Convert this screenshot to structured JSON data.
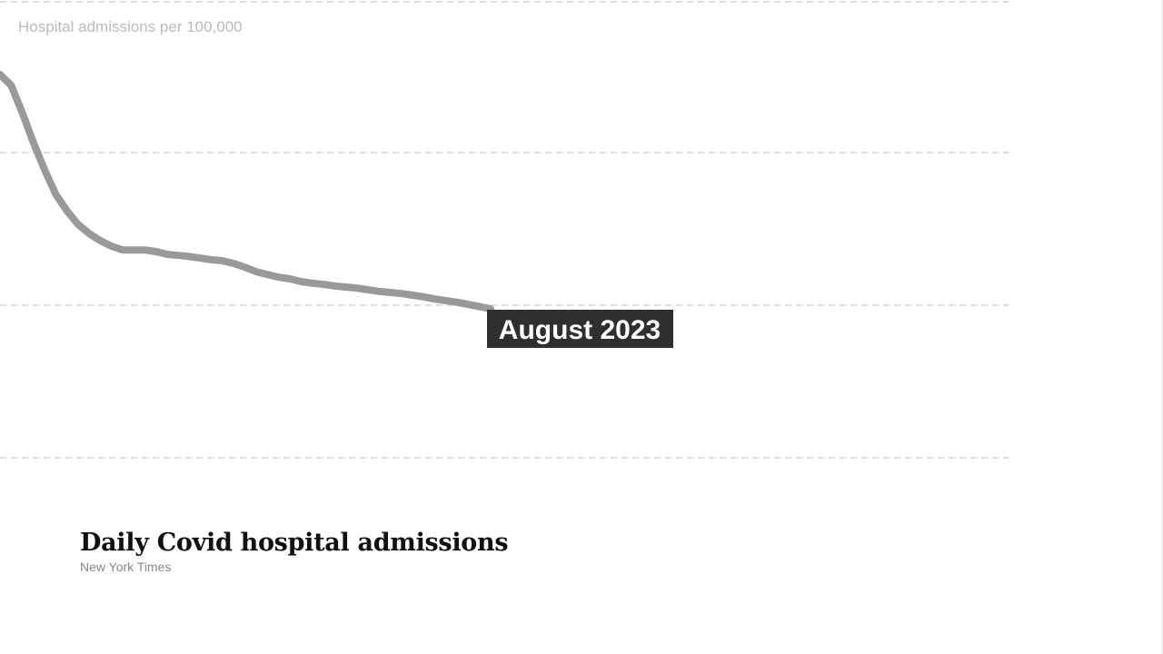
{
  "chart_data": {
    "type": "line",
    "title": "Daily Covid hospital admissions",
    "source": "New York Times",
    "ylabel": "Hospital admissions per 100,000",
    "grid": true,
    "annotation": "August 2023",
    "series": [
      {
        "values": [
          5.3,
          5.1,
          4.6,
          4.05,
          3.55,
          3.1,
          2.8,
          2.55,
          2.38,
          2.25,
          2.15,
          2.08,
          2.08,
          2.08,
          2.05,
          2.0,
          1.98,
          1.96,
          1.93,
          1.9,
          1.88,
          1.83,
          1.76,
          1.68,
          1.63,
          1.58,
          1.55,
          1.5,
          1.47,
          1.45,
          1.42,
          1.4,
          1.38,
          1.35,
          1.32,
          1.3,
          1.28,
          1.25,
          1.22,
          1.18,
          1.15,
          1.12,
          1.08,
          1.04,
          1.0
        ]
      }
    ],
    "colors": {
      "line": "#999999",
      "grid": "#dcdcdc",
      "label_bg": "#2f2f2f",
      "label_text": "#ffffff",
      "axis_label": "#bbbbbb"
    }
  }
}
